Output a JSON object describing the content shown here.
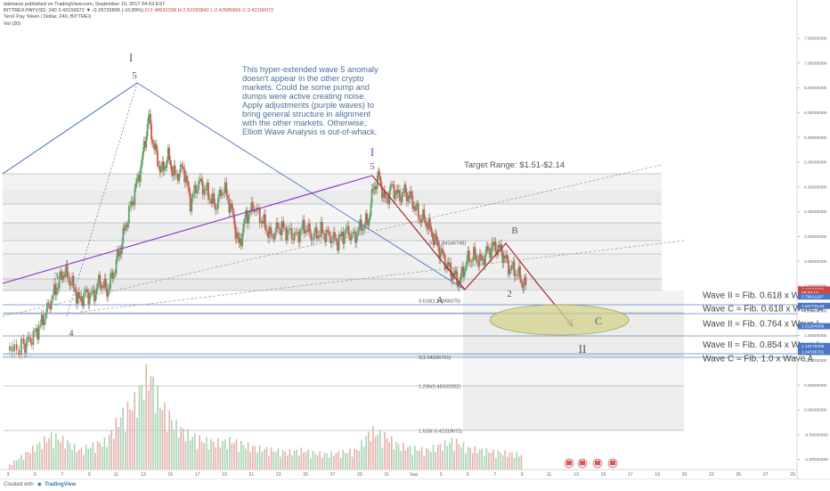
{
  "header": {
    "published": "dalmacio published on TradingView.com, September 10, 2017 04:53 EST",
    "symbol_line": "BITTREX:PAYUSD, 240  2.43156972 ▼ -0.29725806 (-10.89%)",
    "ohlc": "O:2.48632208 H:2.52283842 L:2.42685866 C:2.43156972",
    "title": "TenX Pay Token / Dollar, 240, BITTREX",
    "vol": "Vol (20)"
  },
  "footer": {
    "created_with": "Created with",
    "brand": "TradingView"
  },
  "annotations": {
    "commentary": [
      "This hyper-extended wave 5 anomaly",
      "doesn't appear in the other crypto",
      "markets. Could be some pump and",
      "dumps were active creating noise.",
      "Apply adjustments (purple waves) to",
      "bring general structure in alignment",
      "with the other markets. Otherwise,",
      "Elliott Wave Analysis is out-of-whack."
    ],
    "target": "Target Range: $1.51-$2.14",
    "wave_labels": {
      "blue_I": "I",
      "blue_5": "5",
      "blue_3": "3",
      "blue_4": "4",
      "purple_I": "I",
      "purple_5": "5",
      "A": "A",
      "B": "B",
      "C": "C",
      "two": "2",
      "II": "II"
    },
    "fib_labels": [
      {
        "label": "0.5(1.84146748)",
        "price": 3.37
      },
      {
        "label": "0.618(1.94968375)",
        "price": 2.2
      },
      {
        "label": "1(1.04336701)",
        "price": 1.06
      },
      {
        "label": "1.236(0.48332002)",
        "price": 0.48
      },
      {
        "label": "1.618(-0.42319672)",
        "price": -0.42
      }
    ],
    "wave_notes": [
      {
        "text": "Wave II ≈ Fib. 0.618 x Wave I",
        "price": 2.31
      },
      {
        "text": "Wave C ≈ Fib. 0.618 x Wave A",
        "price": 2.04
      },
      {
        "text": "Wave II ≈ Fib. 0.764 x Wave I",
        "price": 1.74
      },
      {
        "text": "Wave II ≈ Fib. 0.854 x Wave I",
        "price": 1.31
      },
      {
        "text": "Wave C ≈ Fib. 1.0 x Wave A",
        "price": 1.03
      }
    ]
  },
  "chart_data": {
    "type": "candlestick",
    "title": "TenX Pay Token / Dollar, 240, BITTREX",
    "y_axis": {
      "ticks": [
        "7.50000000",
        "7.00000000",
        "6.50000000",
        "6.00000000",
        "5.50000000",
        "5.00000000",
        "4.50000000",
        "4.00000000",
        "3.50000000",
        "3.00000000",
        "2.50000000",
        "2.00000000",
        "1.50000000",
        "1.00000000",
        "0.50000000",
        "0.00000000",
        "-0.50000000",
        "-1.00000000"
      ],
      "range": [
        -1.25,
        8.0
      ]
    },
    "x_axis": {
      "ticks": [
        "3",
        "5",
        "7",
        "9",
        "11",
        "13",
        "15",
        "17",
        "19",
        "21",
        "23",
        "25",
        "27",
        "29",
        "31",
        "Sep",
        "3",
        "5",
        "7",
        "9",
        "11",
        "13",
        "15",
        "17",
        "19",
        "20",
        "22",
        "25",
        "27",
        "29"
      ]
    },
    "price_labels": [
      {
        "text": "2.43156972",
        "price": 2.43,
        "color": "#d0463e"
      },
      {
        "text": "00:06:10",
        "price": 2.37,
        "color": "#d0463e"
      },
      {
        "text": "2.79611187",
        "price": 2.29,
        "color": "#4a76c4"
      },
      {
        "text": "1.84772146",
        "price": 2.1,
        "color": "#4a76c4"
      },
      {
        "text": "1.51204336",
        "price": 1.69,
        "color": "#4a76c4"
      },
      {
        "text": "1.13176206",
        "price": 1.29,
        "color": "#4a76c4"
      },
      {
        "text": "1.04336701",
        "price": 1.17,
        "color": "#4a76c4"
      }
    ],
    "price_series": [
      {
        "day": 2.0,
        "p": 1.2
      },
      {
        "day": 3.0,
        "p": 1.3
      },
      {
        "day": 3.6,
        "p": 1.45
      },
      {
        "day": 4.2,
        "p": 1.7
      },
      {
        "day": 4.8,
        "p": 2.1
      },
      {
        "day": 5.4,
        "p": 2.5
      },
      {
        "day": 5.9,
        "p": 2.8
      },
      {
        "day": 6.4,
        "p": 2.6
      },
      {
        "day": 7.0,
        "p": 2.2
      },
      {
        "day": 7.5,
        "p": 2.35
      },
      {
        "day": 8.0,
        "p": 2.3
      },
      {
        "day": 8.5,
        "p": 2.6
      },
      {
        "day": 9.0,
        "p": 2.4
      },
      {
        "day": 9.5,
        "p": 2.8
      },
      {
        "day": 10.0,
        "p": 3.3
      },
      {
        "day": 10.5,
        "p": 3.9
      },
      {
        "day": 11.0,
        "p": 4.4
      },
      {
        "day": 11.5,
        "p": 5.0
      },
      {
        "day": 12.0,
        "p": 5.9
      },
      {
        "day": 12.4,
        "p": 5.3
      },
      {
        "day": 12.9,
        "p": 4.8
      },
      {
        "day": 13.4,
        "p": 5.1
      },
      {
        "day": 13.9,
        "p": 4.7
      },
      {
        "day": 14.5,
        "p": 4.9
      },
      {
        "day": 15.0,
        "p": 4.2
      },
      {
        "day": 15.6,
        "p": 4.6
      },
      {
        "day": 16.2,
        "p": 4.4
      },
      {
        "day": 16.8,
        "p": 4.1
      },
      {
        "day": 17.4,
        "p": 4.5
      },
      {
        "day": 18.0,
        "p": 4.0
      },
      {
        "day": 18.5,
        "p": 3.3
      },
      {
        "day": 19.0,
        "p": 3.9
      },
      {
        "day": 19.6,
        "p": 4.1
      },
      {
        "day": 20.2,
        "p": 3.8
      },
      {
        "day": 20.8,
        "p": 3.5
      },
      {
        "day": 21.4,
        "p": 3.7
      },
      {
        "day": 22.0,
        "p": 3.6
      },
      {
        "day": 22.6,
        "p": 3.5
      },
      {
        "day": 23.2,
        "p": 3.7
      },
      {
        "day": 23.8,
        "p": 3.5
      },
      {
        "day": 24.4,
        "p": 3.6
      },
      {
        "day": 25.0,
        "p": 3.5
      },
      {
        "day": 25.6,
        "p": 3.4
      },
      {
        "day": 26.2,
        "p": 3.6
      },
      {
        "day": 26.8,
        "p": 3.5
      },
      {
        "day": 27.3,
        "p": 3.7
      },
      {
        "day": 27.8,
        "p": 3.8
      },
      {
        "day": 28.2,
        "p": 4.5
      },
      {
        "day": 28.6,
        "p": 4.7
      },
      {
        "day": 29.0,
        "p": 4.2
      },
      {
        "day": 29.5,
        "p": 4.5
      },
      {
        "day": 30.0,
        "p": 4.3
      },
      {
        "day": 30.5,
        "p": 4.4
      },
      {
        "day": 31.0,
        "p": 4.2
      },
      {
        "day": 31.5,
        "p": 3.9
      },
      {
        "day": 32.0,
        "p": 3.8
      },
      {
        "day": 32.5,
        "p": 3.5
      },
      {
        "day": 33.0,
        "p": 3.2
      },
      {
        "day": 33.5,
        "p": 2.9
      },
      {
        "day": 34.0,
        "p": 2.7
      },
      {
        "day": 34.4,
        "p": 2.6
      },
      {
        "day": 34.9,
        "p": 3.0
      },
      {
        "day": 35.4,
        "p": 3.1
      },
      {
        "day": 35.9,
        "p": 3.0
      },
      {
        "day": 36.4,
        "p": 3.2
      },
      {
        "day": 36.9,
        "p": 3.3
      },
      {
        "day": 37.4,
        "p": 3.2
      },
      {
        "day": 37.9,
        "p": 2.9
      },
      {
        "day": 38.4,
        "p": 2.8
      },
      {
        "day": 38.9,
        "p": 2.6
      },
      {
        "day": 39.2,
        "p": 2.43
      }
    ],
    "volume_series": [
      {
        "day": 2,
        "v": 0.05
      },
      {
        "day": 3,
        "v": 0.15
      },
      {
        "day": 4,
        "v": 0.25
      },
      {
        "day": 5,
        "v": 0.35
      },
      {
        "day": 6,
        "v": 0.3
      },
      {
        "day": 7,
        "v": 0.2
      },
      {
        "day": 8,
        "v": 0.25
      },
      {
        "day": 9,
        "v": 0.3
      },
      {
        "day": 10,
        "v": 0.55
      },
      {
        "day": 11,
        "v": 0.7
      },
      {
        "day": 12,
        "v": 1.0
      },
      {
        "day": 13,
        "v": 0.65
      },
      {
        "day": 14,
        "v": 0.45
      },
      {
        "day": 15,
        "v": 0.35
      },
      {
        "day": 16,
        "v": 0.3
      },
      {
        "day": 17,
        "v": 0.28
      },
      {
        "day": 18,
        "v": 0.3
      },
      {
        "day": 19,
        "v": 0.25
      },
      {
        "day": 20,
        "v": 0.22
      },
      {
        "day": 21,
        "v": 0.2
      },
      {
        "day": 22,
        "v": 0.18
      },
      {
        "day": 23,
        "v": 0.2
      },
      {
        "day": 24,
        "v": 0.17
      },
      {
        "day": 25,
        "v": 0.16
      },
      {
        "day": 26,
        "v": 0.18
      },
      {
        "day": 27,
        "v": 0.2
      },
      {
        "day": 28,
        "v": 0.4
      },
      {
        "day": 29,
        "v": 0.35
      },
      {
        "day": 30,
        "v": 0.25
      },
      {
        "day": 31,
        "v": 0.22
      },
      {
        "day": 32,
        "v": 0.2
      },
      {
        "day": 33,
        "v": 0.25
      },
      {
        "day": 34,
        "v": 0.3
      },
      {
        "day": 35,
        "v": 0.22
      },
      {
        "day": 36,
        "v": 0.2
      },
      {
        "day": 37,
        "v": 0.18
      },
      {
        "day": 38,
        "v": 0.17
      },
      {
        "day": 39,
        "v": 0.15
      }
    ],
    "colors": {
      "up": "#5aa36c",
      "down": "#c95a4e",
      "blue_wave": "#4a76c4",
      "purple_wave": "#8a2ec4",
      "red_wave": "#b02a2a",
      "ellipse": "#c9c76b"
    }
  }
}
